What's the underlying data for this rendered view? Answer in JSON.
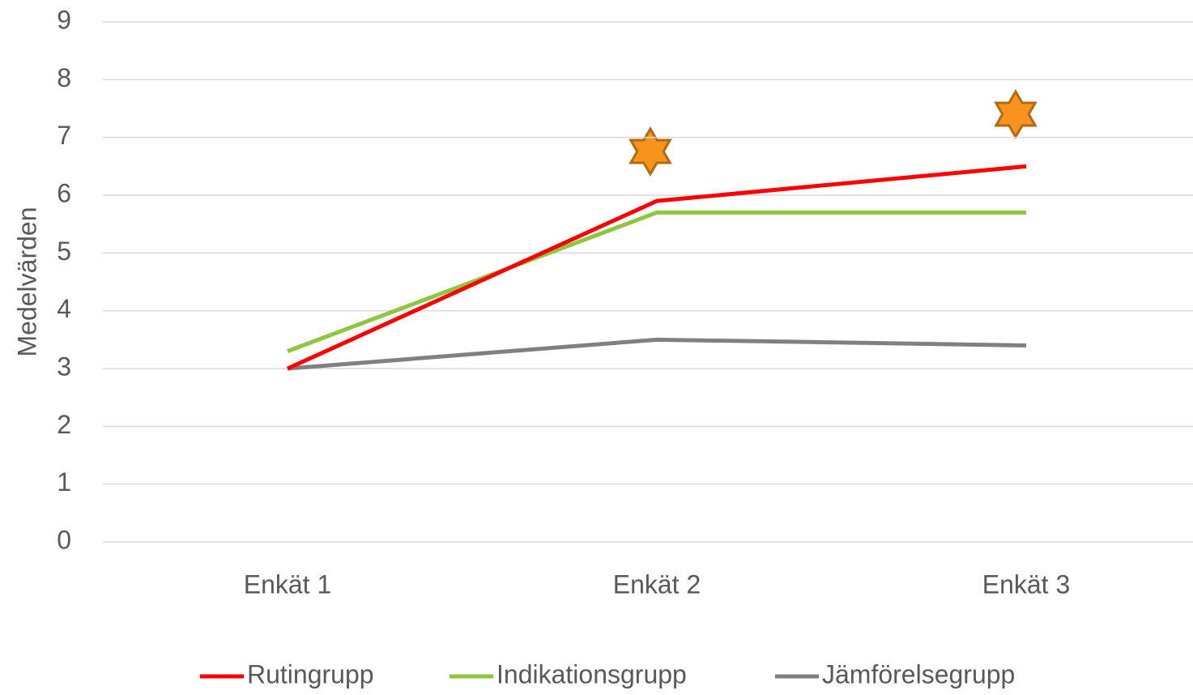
{
  "chart_data": {
    "type": "line",
    "y_label": "Medelvärden",
    "categories": [
      "Enkät 1",
      "Enkät 2",
      "Enkät 3"
    ],
    "series": [
      {
        "name": "Rutingrupp",
        "color": "#ff0000",
        "values": [
          3,
          5.9,
          6.5
        ]
      },
      {
        "name": "Indikationsgrupp",
        "color": "#8dc63f",
        "values": [
          3.3,
          5.7,
          5.7
        ]
      },
      {
        "name": "Jämförelsegrupp",
        "color": "#808080",
        "values": [
          3,
          3.5,
          3.4
        ]
      }
    ],
    "ylim": [
      0,
      9
    ],
    "yticks": [
      0,
      1,
      2,
      3,
      4,
      5,
      6,
      7,
      8,
      9
    ],
    "grid": true,
    "legend": "bottom"
  }
}
